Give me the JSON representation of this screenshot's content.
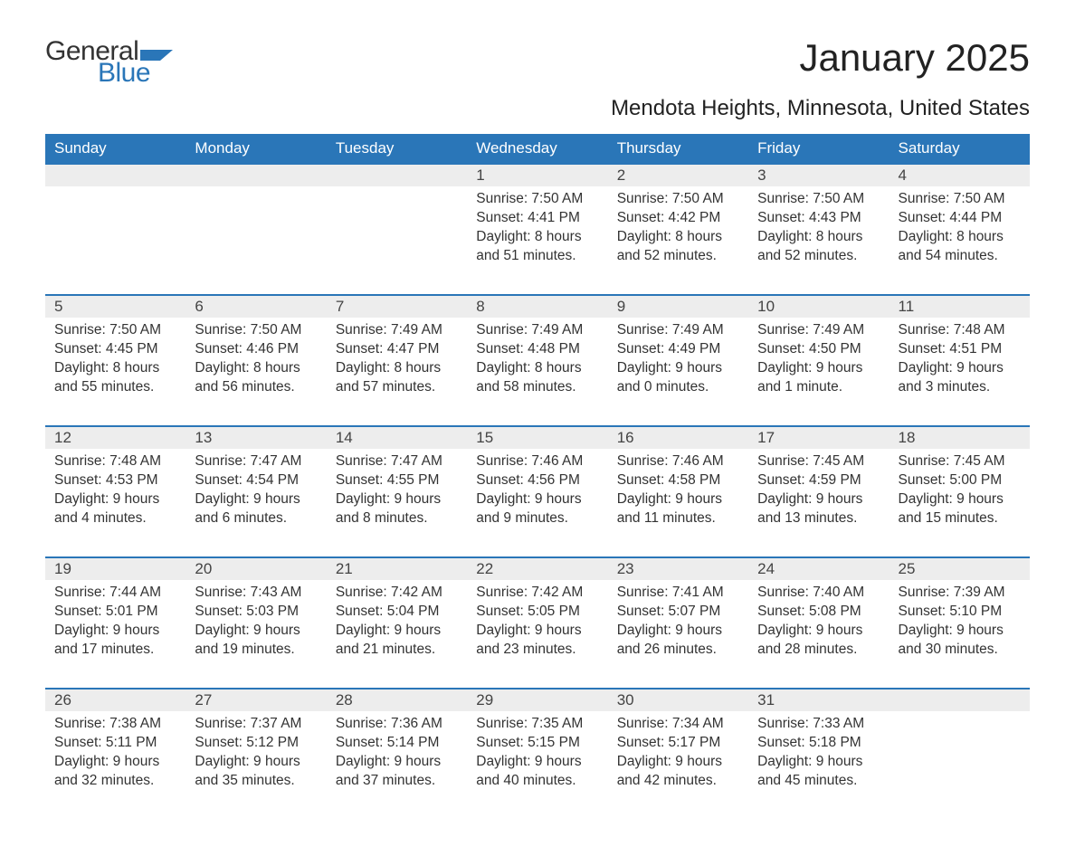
{
  "brand": {
    "part1": "General",
    "part2": "Blue",
    "flag_color": "#2a76b8"
  },
  "title": "January 2025",
  "subtitle": "Mendota Heights, Minnesota, United States",
  "theme": {
    "header_bg": "#2a76b8",
    "header_text": "#ffffff",
    "daynum_bg": "#ededed",
    "daynum_border": "#2a76b8",
    "body_bg": "#ffffff",
    "text_color": "#333333"
  },
  "weekday_labels": [
    "Sunday",
    "Monday",
    "Tuesday",
    "Wednesday",
    "Thursday",
    "Friday",
    "Saturday"
  ],
  "weeks": [
    [
      {
        "day": "",
        "sunrise": "",
        "sunset": "",
        "daylight": ""
      },
      {
        "day": "",
        "sunrise": "",
        "sunset": "",
        "daylight": ""
      },
      {
        "day": "",
        "sunrise": "",
        "sunset": "",
        "daylight": ""
      },
      {
        "day": "1",
        "sunrise": "Sunrise: 7:50 AM",
        "sunset": "Sunset: 4:41 PM",
        "daylight": "Daylight: 8 hours and 51 minutes."
      },
      {
        "day": "2",
        "sunrise": "Sunrise: 7:50 AM",
        "sunset": "Sunset: 4:42 PM",
        "daylight": "Daylight: 8 hours and 52 minutes."
      },
      {
        "day": "3",
        "sunrise": "Sunrise: 7:50 AM",
        "sunset": "Sunset: 4:43 PM",
        "daylight": "Daylight: 8 hours and 52 minutes."
      },
      {
        "day": "4",
        "sunrise": "Sunrise: 7:50 AM",
        "sunset": "Sunset: 4:44 PM",
        "daylight": "Daylight: 8 hours and 54 minutes."
      }
    ],
    [
      {
        "day": "5",
        "sunrise": "Sunrise: 7:50 AM",
        "sunset": "Sunset: 4:45 PM",
        "daylight": "Daylight: 8 hours and 55 minutes."
      },
      {
        "day": "6",
        "sunrise": "Sunrise: 7:50 AM",
        "sunset": "Sunset: 4:46 PM",
        "daylight": "Daylight: 8 hours and 56 minutes."
      },
      {
        "day": "7",
        "sunrise": "Sunrise: 7:49 AM",
        "sunset": "Sunset: 4:47 PM",
        "daylight": "Daylight: 8 hours and 57 minutes."
      },
      {
        "day": "8",
        "sunrise": "Sunrise: 7:49 AM",
        "sunset": "Sunset: 4:48 PM",
        "daylight": "Daylight: 8 hours and 58 minutes."
      },
      {
        "day": "9",
        "sunrise": "Sunrise: 7:49 AM",
        "sunset": "Sunset: 4:49 PM",
        "daylight": "Daylight: 9 hours and 0 minutes."
      },
      {
        "day": "10",
        "sunrise": "Sunrise: 7:49 AM",
        "sunset": "Sunset: 4:50 PM",
        "daylight": "Daylight: 9 hours and 1 minute."
      },
      {
        "day": "11",
        "sunrise": "Sunrise: 7:48 AM",
        "sunset": "Sunset: 4:51 PM",
        "daylight": "Daylight: 9 hours and 3 minutes."
      }
    ],
    [
      {
        "day": "12",
        "sunrise": "Sunrise: 7:48 AM",
        "sunset": "Sunset: 4:53 PM",
        "daylight": "Daylight: 9 hours and 4 minutes."
      },
      {
        "day": "13",
        "sunrise": "Sunrise: 7:47 AM",
        "sunset": "Sunset: 4:54 PM",
        "daylight": "Daylight: 9 hours and 6 minutes."
      },
      {
        "day": "14",
        "sunrise": "Sunrise: 7:47 AM",
        "sunset": "Sunset: 4:55 PM",
        "daylight": "Daylight: 9 hours and 8 minutes."
      },
      {
        "day": "15",
        "sunrise": "Sunrise: 7:46 AM",
        "sunset": "Sunset: 4:56 PM",
        "daylight": "Daylight: 9 hours and 9 minutes."
      },
      {
        "day": "16",
        "sunrise": "Sunrise: 7:46 AM",
        "sunset": "Sunset: 4:58 PM",
        "daylight": "Daylight: 9 hours and 11 minutes."
      },
      {
        "day": "17",
        "sunrise": "Sunrise: 7:45 AM",
        "sunset": "Sunset: 4:59 PM",
        "daylight": "Daylight: 9 hours and 13 minutes."
      },
      {
        "day": "18",
        "sunrise": "Sunrise: 7:45 AM",
        "sunset": "Sunset: 5:00 PM",
        "daylight": "Daylight: 9 hours and 15 minutes."
      }
    ],
    [
      {
        "day": "19",
        "sunrise": "Sunrise: 7:44 AM",
        "sunset": "Sunset: 5:01 PM",
        "daylight": "Daylight: 9 hours and 17 minutes."
      },
      {
        "day": "20",
        "sunrise": "Sunrise: 7:43 AM",
        "sunset": "Sunset: 5:03 PM",
        "daylight": "Daylight: 9 hours and 19 minutes."
      },
      {
        "day": "21",
        "sunrise": "Sunrise: 7:42 AM",
        "sunset": "Sunset: 5:04 PM",
        "daylight": "Daylight: 9 hours and 21 minutes."
      },
      {
        "day": "22",
        "sunrise": "Sunrise: 7:42 AM",
        "sunset": "Sunset: 5:05 PM",
        "daylight": "Daylight: 9 hours and 23 minutes."
      },
      {
        "day": "23",
        "sunrise": "Sunrise: 7:41 AM",
        "sunset": "Sunset: 5:07 PM",
        "daylight": "Daylight: 9 hours and 26 minutes."
      },
      {
        "day": "24",
        "sunrise": "Sunrise: 7:40 AM",
        "sunset": "Sunset: 5:08 PM",
        "daylight": "Daylight: 9 hours and 28 minutes."
      },
      {
        "day": "25",
        "sunrise": "Sunrise: 7:39 AM",
        "sunset": "Sunset: 5:10 PM",
        "daylight": "Daylight: 9 hours and 30 minutes."
      }
    ],
    [
      {
        "day": "26",
        "sunrise": "Sunrise: 7:38 AM",
        "sunset": "Sunset: 5:11 PM",
        "daylight": "Daylight: 9 hours and 32 minutes."
      },
      {
        "day": "27",
        "sunrise": "Sunrise: 7:37 AM",
        "sunset": "Sunset: 5:12 PM",
        "daylight": "Daylight: 9 hours and 35 minutes."
      },
      {
        "day": "28",
        "sunrise": "Sunrise: 7:36 AM",
        "sunset": "Sunset: 5:14 PM",
        "daylight": "Daylight: 9 hours and 37 minutes."
      },
      {
        "day": "29",
        "sunrise": "Sunrise: 7:35 AM",
        "sunset": "Sunset: 5:15 PM",
        "daylight": "Daylight: 9 hours and 40 minutes."
      },
      {
        "day": "30",
        "sunrise": "Sunrise: 7:34 AM",
        "sunset": "Sunset: 5:17 PM",
        "daylight": "Daylight: 9 hours and 42 minutes."
      },
      {
        "day": "31",
        "sunrise": "Sunrise: 7:33 AM",
        "sunset": "Sunset: 5:18 PM",
        "daylight": "Daylight: 9 hours and 45 minutes."
      },
      {
        "day": "",
        "sunrise": "",
        "sunset": "",
        "daylight": ""
      }
    ]
  ]
}
